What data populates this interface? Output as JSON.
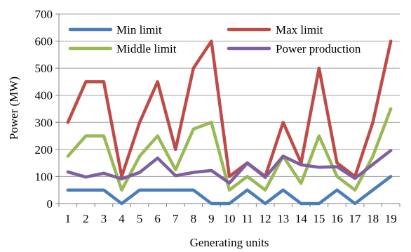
{
  "chart_data": {
    "type": "line",
    "title": "",
    "xlabel": "Generating units",
    "ylabel": "Power (MW)",
    "ylim": [
      0,
      700
    ],
    "yticks": [
      0,
      100,
      200,
      300,
      400,
      500,
      600,
      700
    ],
    "x": [
      "1",
      "2",
      "3",
      "4",
      "5",
      "6",
      "7",
      "8",
      "9",
      "10",
      "11",
      "12",
      "13",
      "14",
      "15",
      "16",
      "17",
      "18",
      "19"
    ],
    "grid": "horizontal",
    "legend_position": "top, inside plot",
    "series": [
      {
        "name": "Min limit",
        "color": "#4a7ebb",
        "values": [
          50,
          50,
          50,
          0,
          50,
          50,
          50,
          50,
          0,
          0,
          50,
          0,
          50,
          0,
          0,
          50,
          0,
          50,
          100
        ]
      },
      {
        "name": "Max limit",
        "color": "#be4b48",
        "values": [
          300,
          450,
          450,
          100,
          300,
          450,
          200,
          500,
          600,
          100,
          150,
          100,
          300,
          150,
          500,
          150,
          100,
          300,
          600
        ]
      },
      {
        "name": "Middle limit",
        "color": "#98b954",
        "values": [
          175,
          250,
          250,
          50,
          175,
          250,
          125,
          275,
          300,
          50,
          100,
          50,
          175,
          75,
          250,
          100,
          50,
          175,
          350
        ]
      },
      {
        "name": "Power production",
        "color": "#7d60a0",
        "values": [
          117,
          98,
          112,
          91,
          115,
          168,
          103,
          115,
          122,
          76,
          149,
          97,
          175,
          143,
          134,
          136,
          93,
          145,
          196
        ]
      }
    ]
  }
}
